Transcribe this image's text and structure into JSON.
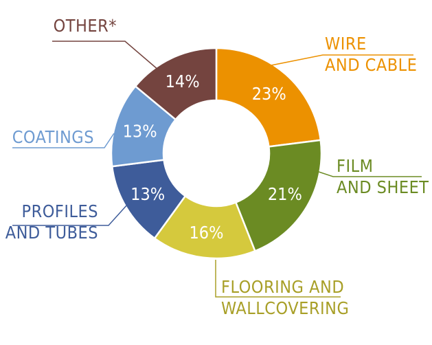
{
  "chart_data": {
    "type": "pie",
    "donut": true,
    "slices": [
      {
        "label_lines": [
          "WIRE",
          "AND CABLE"
        ],
        "value": 23,
        "pct_label": "23%",
        "color": "#ec9100"
      },
      {
        "label_lines": [
          "FILM",
          "AND SHEET"
        ],
        "value": 21,
        "pct_label": "21%",
        "color": "#6b8b23"
      },
      {
        "label_lines": [
          "FLOORING AND",
          "WALLCOVERING"
        ],
        "value": 16,
        "pct_label": "16%",
        "color": "#d5c93d"
      },
      {
        "label_lines": [
          "PROFILES",
          "AND TUBES"
        ],
        "value": 13,
        "pct_label": "13%",
        "color": "#3e5c9a"
      },
      {
        "label_lines": [
          "COATINGS"
        ],
        "value": 13,
        "pct_label": "13%",
        "color": "#6e9bd1"
      },
      {
        "label_lines": [
          "OTHER*"
        ],
        "value": 14,
        "pct_label": "14%",
        "color": "#74443f"
      }
    ],
    "label_colors": [
      "#ec9100",
      "#6b8b23",
      "#a89f27",
      "#3e5c9a",
      "#6e9bd1",
      "#74443f"
    ]
  }
}
